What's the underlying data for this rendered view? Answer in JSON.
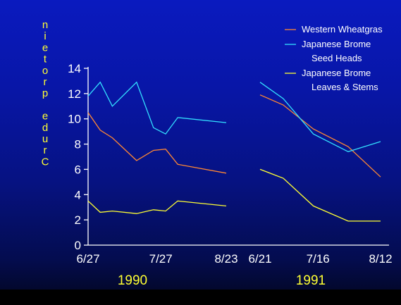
{
  "chart_data": {
    "type": "line",
    "ylabel": "Crude protein",
    "ylim": [
      0,
      14
    ],
    "yticks": [
      "0",
      "2",
      "4",
      "6",
      "8",
      "10",
      "12",
      "14"
    ],
    "grid": false,
    "legend_position": "top-right",
    "colors": {
      "western_wheatgrass": "#ff8833",
      "japanese_brome_seed_heads": "#33e0ff",
      "japanese_brome_leaves_stems": "#ffff33",
      "axis": "#ffffff",
      "ylabel": "#ffff33"
    },
    "legend": [
      {
        "lines": [
          "Western Wheatgras"
        ],
        "color": "#ff8833"
      },
      {
        "lines": [
          "Japanese Brome",
          "Seed Heads"
        ],
        "color": "#33e0ff"
      },
      {
        "lines": [
          "Japanese Brome",
          "Leaves & Stems"
        ],
        "color": "#ffff33"
      }
    ],
    "panels": [
      {
        "year": "1990",
        "x_tick_labels": [
          "6/27",
          "7/27",
          "8/23"
        ],
        "x_tick_positions": [
          0,
          30,
          57
        ],
        "xlim": [
          0,
          57
        ],
        "series": [
          {
            "name": "Western Wheatgras",
            "color": "#ff8833",
            "points": [
              [
                0,
                10.5
              ],
              [
                5,
                9.1
              ],
              [
                10,
                8.5
              ],
              [
                20,
                6.7
              ],
              [
                27,
                7.5
              ],
              [
                32,
                7.6
              ],
              [
                37,
                6.4
              ],
              [
                57,
                5.7
              ]
            ]
          },
          {
            "name": "Japanese Brome Seed Heads",
            "color": "#33e0ff",
            "points": [
              [
                0,
                11.8
              ],
              [
                5,
                12.9
              ],
              [
                10,
                11.0
              ],
              [
                20,
                12.9
              ],
              [
                27,
                9.3
              ],
              [
                32,
                8.8
              ],
              [
                37,
                10.1
              ],
              [
                57,
                9.7
              ]
            ]
          },
          {
            "name": "Japanese Brome Leaves & Stems",
            "color": "#ffff33",
            "points": [
              [
                0,
                3.5
              ],
              [
                5,
                2.6
              ],
              [
                10,
                2.7
              ],
              [
                20,
                2.5
              ],
              [
                27,
                2.8
              ],
              [
                32,
                2.7
              ],
              [
                37,
                3.5
              ],
              [
                57,
                3.1
              ]
            ]
          }
        ]
      },
      {
        "year": "1991",
        "x_tick_labels": [
          "6/21",
          "7/16",
          "8/12"
        ],
        "x_tick_positions": [
          0,
          25,
          52
        ],
        "xlim": [
          0,
          52
        ],
        "series": [
          {
            "name": "Western Wheatgras",
            "color": "#ff8833",
            "points": [
              [
                0,
                11.9
              ],
              [
                10,
                11.1
              ],
              [
                23,
                9.2
              ],
              [
                38,
                7.8
              ],
              [
                52,
                5.4
              ]
            ]
          },
          {
            "name": "Japanese Brome Seed Heads",
            "color": "#33e0ff",
            "points": [
              [
                0,
                12.9
              ],
              [
                10,
                11.6
              ],
              [
                23,
                8.8
              ],
              [
                38,
                7.4
              ],
              [
                52,
                8.2
              ]
            ]
          },
          {
            "name": "Japanese Brome Leaves & Stems",
            "color": "#ffff33",
            "points": [
              [
                0,
                6.0
              ],
              [
                10,
                5.3
              ],
              [
                23,
                3.1
              ],
              [
                38,
                1.9
              ],
              [
                52,
                1.9
              ]
            ]
          }
        ]
      }
    ]
  }
}
